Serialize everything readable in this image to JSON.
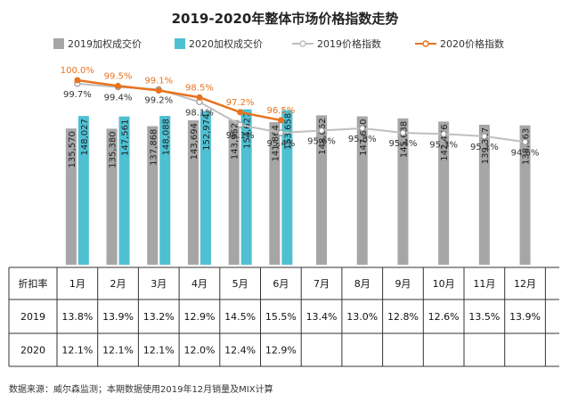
{
  "chart_data": {
    "type": "bar+line",
    "title": "2019-2020年整体市场价格指数走势",
    "categories": [
      "1月",
      "2月",
      "3月",
      "4月",
      "5月",
      "6月",
      "7月",
      "8月",
      "9月",
      "10月",
      "11月",
      "12月"
    ],
    "bar_series": [
      {
        "name": "2019加权成交价",
        "values": [
          135570,
          135380,
          137868,
          143694,
          143952,
          141864,
          148662,
          147650,
          145638,
          142476,
          139327,
          138663
        ],
        "labels": [
          "135,570",
          "135,380",
          "137,868",
          "143,694",
          "143,952",
          "141,864",
          "148,662",
          "147,650",
          "145,638",
          "142,476",
          "139,327",
          "138,663"
        ]
      },
      {
        "name": "2020加权成交价",
        "values": [
          148027,
          147561,
          148088,
          152974,
          154627,
          153658
        ],
        "labels": [
          "148,027",
          "147,561",
          "148,088",
          "152,974",
          "154,627",
          "153,658"
        ]
      }
    ],
    "line_series": [
      {
        "name": "2019价格指数",
        "values": [
          99.7,
          99.4,
          99.2,
          98.1,
          96.1,
          95.4,
          95.6,
          95.8,
          95.4,
          95.3,
          95.1,
          94.6
        ],
        "labels": [
          "99.7%",
          "99.4%",
          "99.2%",
          "98.1%",
          "96.1%",
          "95.4%",
          "95.6%",
          "95.8%",
          "95.4%",
          "95.3%",
          "95.1%",
          "94.6%"
        ]
      },
      {
        "name": "2020价格指数",
        "values": [
          100.0,
          99.5,
          99.1,
          98.5,
          97.2,
          96.5
        ],
        "labels": [
          "100.0%",
          "99.5%",
          "99.1%",
          "98.5%",
          "97.2%",
          "96.5%"
        ]
      }
    ],
    "legend_position": "top",
    "colors": {
      "bar_2019": "#a6a6a6",
      "bar_2020": "#4fc0d2",
      "line_2019": "#bfbfbf",
      "line_2020": "#e8731f"
    },
    "table": {
      "header": "折扣率",
      "rows": [
        {
          "label": "2019",
          "values": [
            "13.8%",
            "13.9%",
            "13.2%",
            "12.9%",
            "14.5%",
            "15.5%",
            "13.4%",
            "13.0%",
            "12.8%",
            "12.6%",
            "13.5%",
            "13.9%"
          ]
        },
        {
          "label": "2020",
          "values": [
            "12.1%",
            "12.1%",
            "12.1%",
            "12.0%",
            "12.4%",
            "12.9%",
            "",
            "",
            "",
            "",
            "",
            ""
          ]
        }
      ]
    }
  },
  "source": "数据来源：威尔森监测；本期数据使用2019年12月销量及MIX计算"
}
